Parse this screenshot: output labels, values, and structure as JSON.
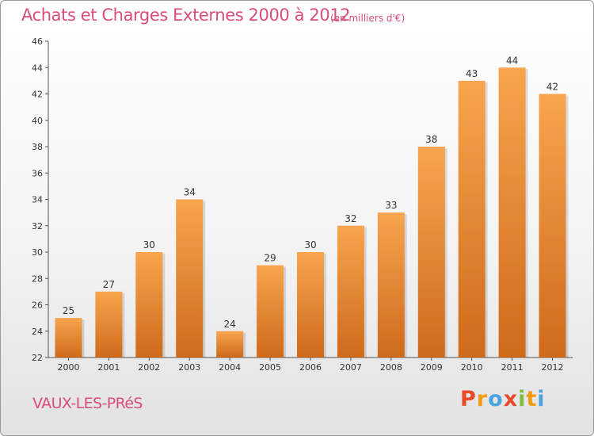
{
  "title": "Achats et Charges Externes 2000 à 2012",
  "subtitle": "(en milliers d'€)",
  "town": "VAUX-LES-PRéS",
  "logo": {
    "letters": [
      "P",
      "r",
      "o",
      "x",
      "i",
      "t",
      "i"
    ],
    "colors": [
      "#e84a2a",
      "#f39c12",
      "#4aa3df",
      "#e84a2a",
      "#7cbd3a",
      "#f39c12",
      "#4aa3df"
    ]
  },
  "colors": {
    "bar_top": "#f7a54e",
    "bar_bottom": "#cf6a1a",
    "accent": "#d94e78"
  },
  "chart_data": {
    "type": "bar",
    "categories": [
      "2000",
      "2001",
      "2002",
      "2003",
      "2004",
      "2005",
      "2006",
      "2007",
      "2008",
      "2009",
      "2010",
      "2011",
      "2012"
    ],
    "values": [
      25,
      27,
      30,
      34,
      24,
      29,
      30,
      32,
      33,
      38,
      43,
      44,
      42
    ],
    "ylim": [
      22,
      46
    ],
    "yticks": [
      22,
      24,
      26,
      28,
      30,
      32,
      34,
      36,
      38,
      40,
      42,
      44,
      46
    ],
    "grid": false,
    "legend": "none"
  }
}
